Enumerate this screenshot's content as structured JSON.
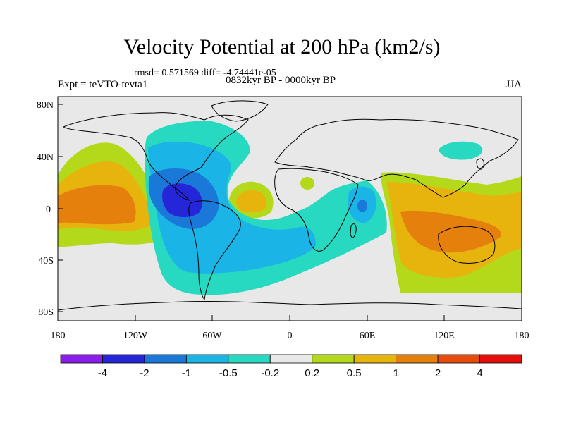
{
  "title": "Velocity Potential at 200 hPa (km2/s)",
  "stats": "rmsd= 0.571569 diff= -4.74441e-05",
  "period": "0832kyr BP - 0000kyr BP",
  "experiment": "Expt = teVTO-tevta1",
  "season": "JJA",
  "axes": {
    "lat_labels": [
      "80N",
      "40N",
      "0",
      "40S",
      "80S"
    ],
    "lon_labels": [
      "180",
      "120W",
      "60W",
      "0",
      "60E",
      "120E",
      "180"
    ]
  },
  "colorbar": {
    "labels": [
      "-4",
      "-2",
      "-1",
      "-0.5",
      "-0.2",
      "0.2",
      "0.5",
      "1",
      "2",
      "4"
    ],
    "colors": [
      "#8a1ee8",
      "#2626d9",
      "#1a78d9",
      "#1ab4e6",
      "#26d9c0",
      "#e8e8e8",
      "#b4d91a",
      "#e6b40d",
      "#e6800d",
      "#e64d0d",
      "#e60d0d"
    ]
  }
}
